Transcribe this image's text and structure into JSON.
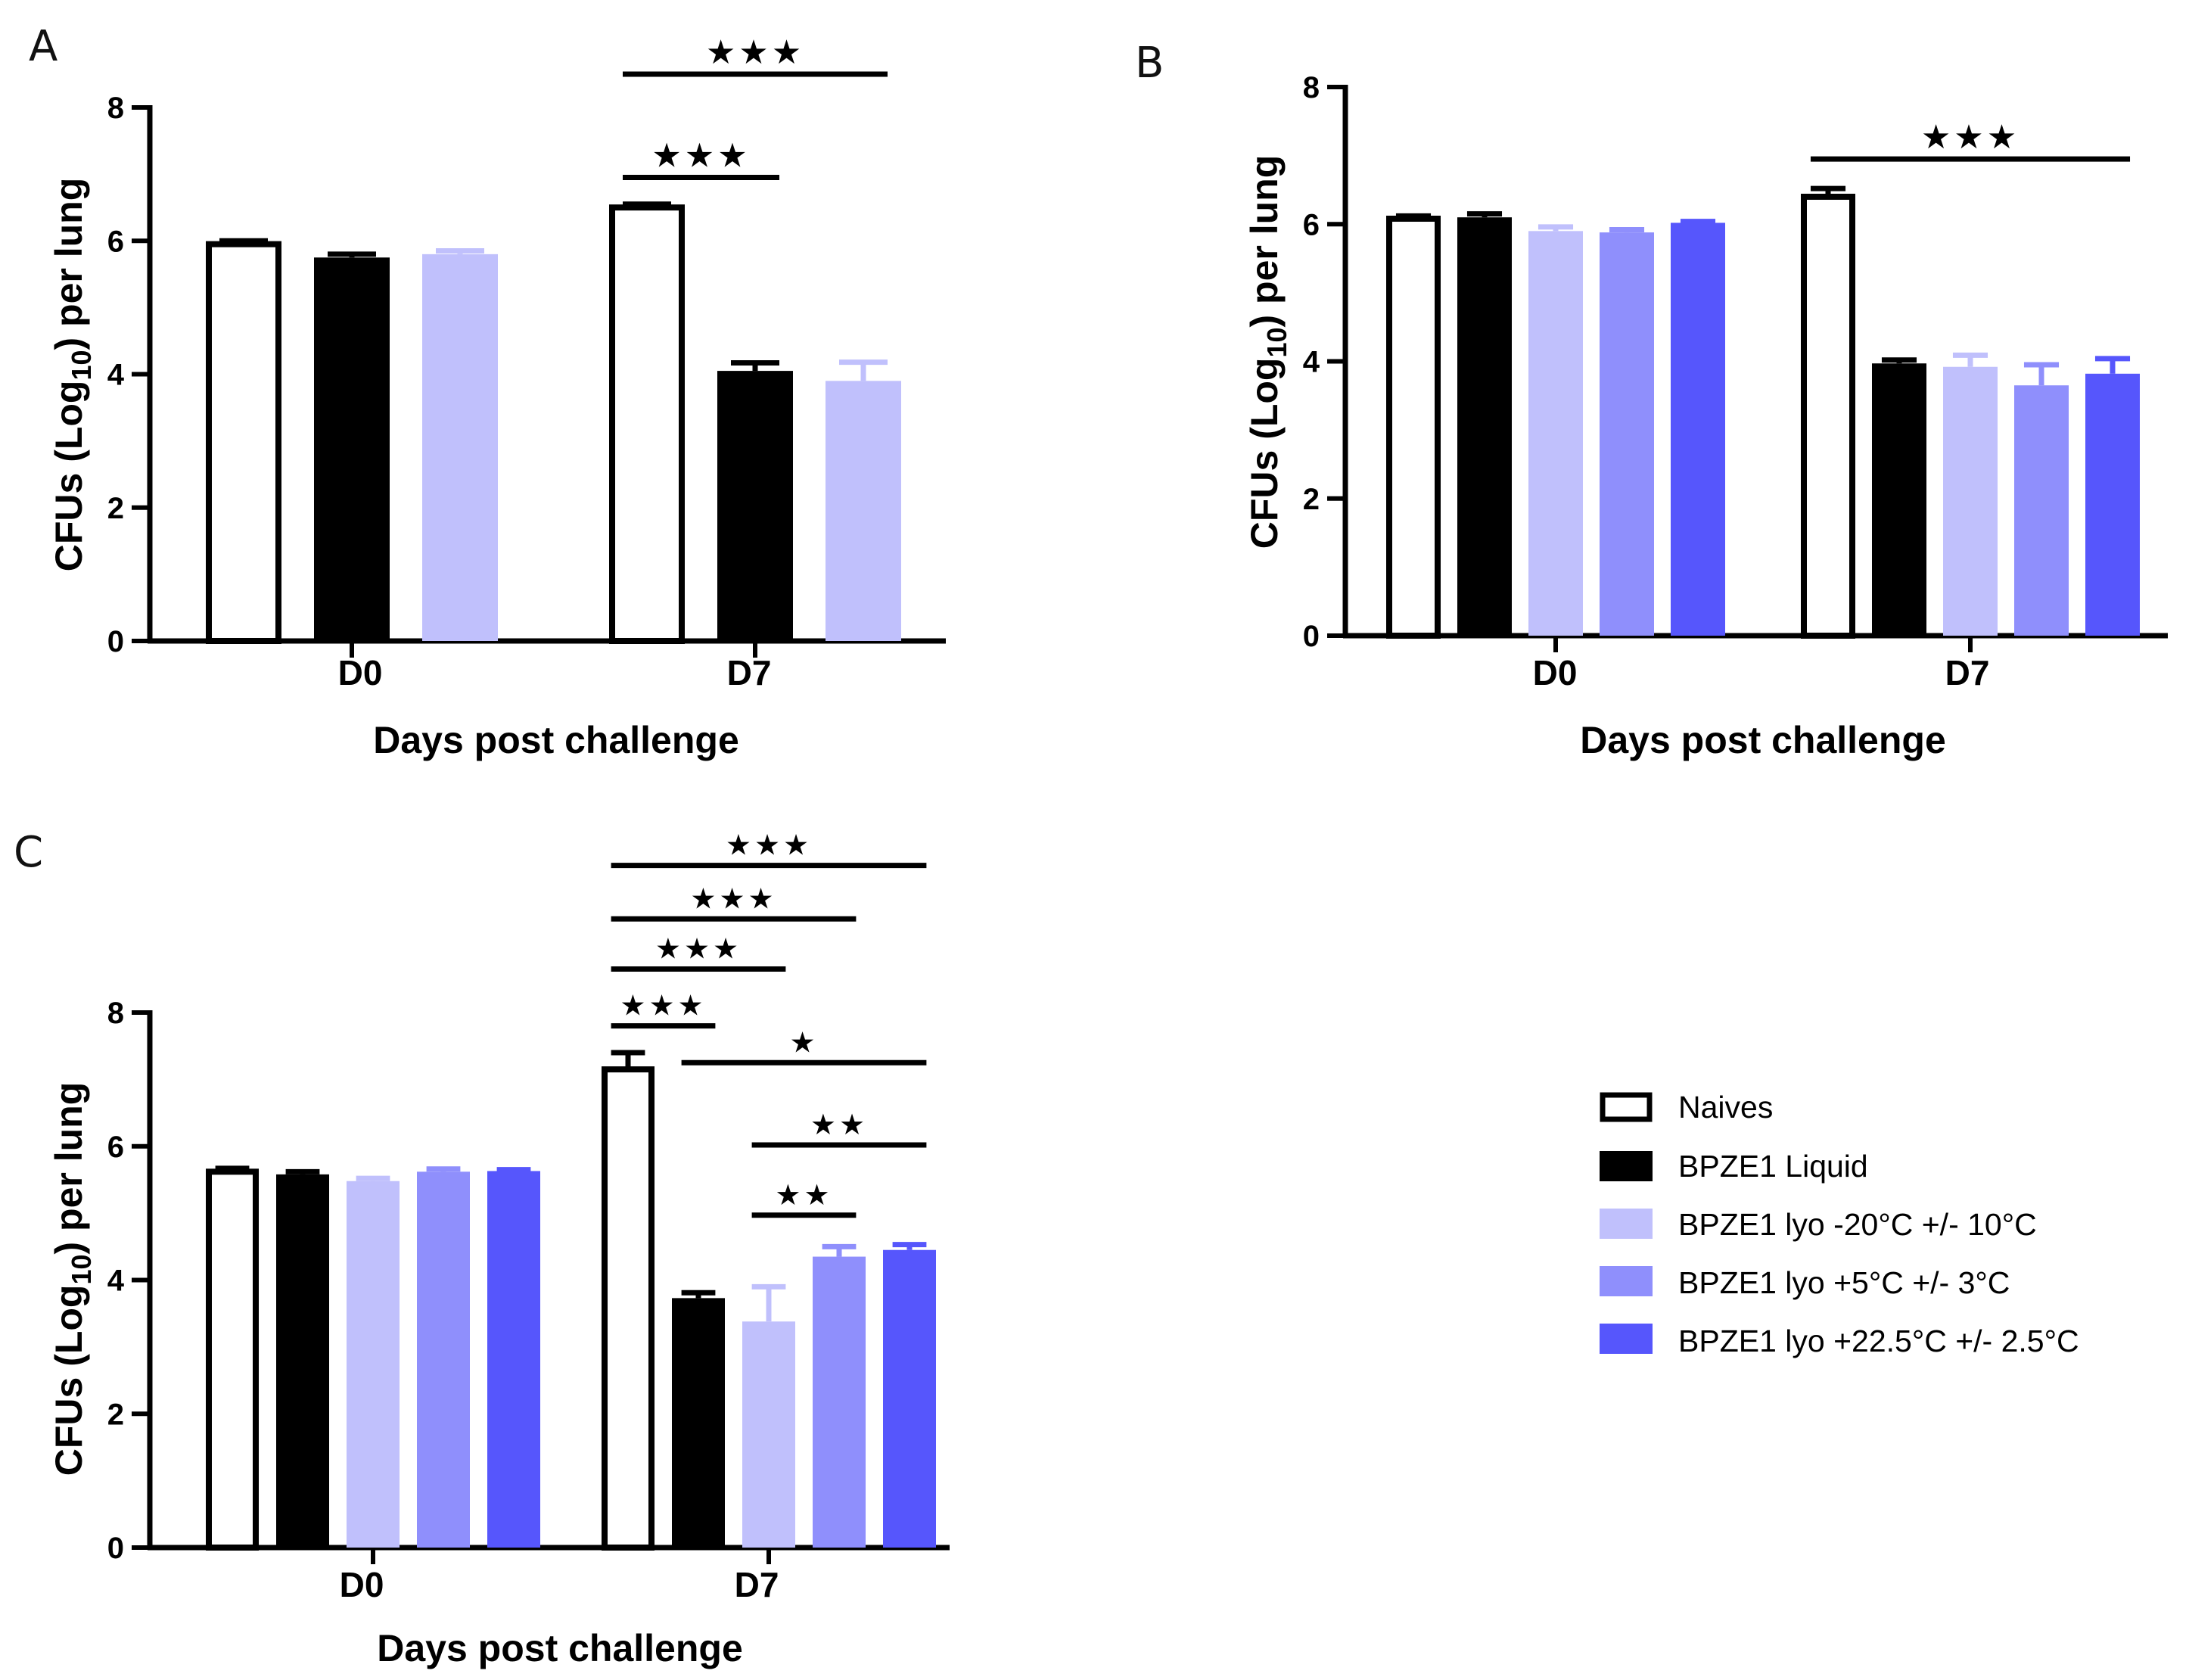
{
  "legend": {
    "items": [
      {
        "label": "Naives",
        "color": "#ffffff"
      },
      {
        "label": "BPZE1 Liquid",
        "color": "#000000"
      },
      {
        "label": "BPZE1 lyo -20°C +/- 10°C",
        "color": "#c0c0fc"
      },
      {
        "label": "BPZE1 lyo +5°C +/- 3°C",
        "color": "#8f8ffc"
      },
      {
        "label": "BPZE1 lyo +22.5°C +/- 2.5°C",
        "color": "#5656fc"
      }
    ]
  },
  "chart_data": [
    {
      "panel": "A",
      "type": "bar",
      "title": "",
      "xlabel": "Days post challenge",
      "ylabel": "CFUs (Log10) per lung",
      "ylabel_parts": {
        "pre": "CFUs (Log",
        "sub": "10",
        "post": ") per lung"
      },
      "ylim": [
        0,
        8
      ],
      "yticks": [
        "0",
        "2",
        "4",
        "6",
        "8"
      ],
      "categories": [
        "D0",
        "D7"
      ],
      "series": [
        {
          "name": "Naives",
          "values": [
            5.95,
            6.5
          ],
          "errors": [
            0.05,
            0.05
          ]
        },
        {
          "name": "BPZE1 Liquid",
          "values": [
            5.75,
            4.05
          ],
          "errors": [
            0.05,
            0.12
          ]
        },
        {
          "name": "BPZE1 lyo -20°C +/- 10°C",
          "values": [
            5.8,
            3.9
          ],
          "errors": [
            0.05,
            0.28
          ]
        }
      ],
      "significance": [
        {
          "label": "★★★",
          "category": "D7",
          "from_series": 0,
          "to_series": 2,
          "y": 8.5
        },
        {
          "label": "★★★",
          "category": "D7",
          "from_series": 0,
          "to_series": 1,
          "y": 6.95
        }
      ]
    },
    {
      "panel": "B",
      "type": "bar",
      "title": "",
      "xlabel": "Days post challenge",
      "ylabel": "CFUs (Log10) per lung",
      "ylabel_parts": {
        "pre": "CFUs (Log",
        "sub": "10",
        "post": ") per lung"
      },
      "ylim": [
        0,
        8
      ],
      "yticks": [
        "0",
        "2",
        "4",
        "6",
        "8"
      ],
      "categories": [
        "D0",
        "D7"
      ],
      "series": [
        {
          "name": "Naives",
          "values": [
            6.08,
            6.4
          ],
          "errors": [
            0.04,
            0.12
          ]
        },
        {
          "name": "BPZE1 Liquid",
          "values": [
            6.1,
            3.97
          ],
          "errors": [
            0.05,
            0.05
          ]
        },
        {
          "name": "BPZE1 lyo -20°C +/- 10°C",
          "values": [
            5.9,
            3.92
          ],
          "errors": [
            0.06,
            0.17
          ]
        },
        {
          "name": "BPZE1 lyo +5°C +/- 3°C",
          "values": [
            5.88,
            3.65
          ],
          "errors": [
            0.04,
            0.3
          ]
        },
        {
          "name": "BPZE1 lyo +22.5°C +/- 2.5°C",
          "values": [
            6.02,
            3.82
          ],
          "errors": [
            0.02,
            0.22
          ]
        }
      ],
      "significance": [
        {
          "label": "★★★",
          "category": "D7",
          "from_series": 0,
          "to_series": 4,
          "y": 6.95
        }
      ]
    },
    {
      "panel": "C",
      "type": "bar",
      "title": "",
      "xlabel": "Days post challenge",
      "ylabel": "CFUs (Log10) per lung",
      "ylabel_parts": {
        "pre": "CFUs (Log",
        "sub": "10",
        "post": ") per lung"
      },
      "ylim": [
        0,
        8
      ],
      "yticks": [
        "0",
        "2",
        "4",
        "6",
        "8"
      ],
      "categories": [
        "D0",
        "D7"
      ],
      "series": [
        {
          "name": "Naives",
          "values": [
            5.62,
            7.15
          ],
          "errors": [
            0.05,
            0.25
          ]
        },
        {
          "name": "BPZE1 Liquid",
          "values": [
            5.58,
            3.73
          ],
          "errors": [
            0.04,
            0.08
          ]
        },
        {
          "name": "BPZE1 lyo -20°C +/- 10°C",
          "values": [
            5.48,
            3.38
          ],
          "errors": [
            0.04,
            0.52
          ]
        },
        {
          "name": "BPZE1 lyo +5°C +/- 3°C",
          "values": [
            5.62,
            4.35
          ],
          "errors": [
            0.04,
            0.15
          ]
        },
        {
          "name": "BPZE1 lyo +22.5°C +/- 2.5°C",
          "values": [
            5.63,
            4.45
          ],
          "errors": [
            0.02,
            0.08
          ]
        }
      ],
      "significance": [
        {
          "label": "★★★",
          "category": "D7",
          "from_series": 0,
          "to_series": 4,
          "y": 10.2
        },
        {
          "label": "★★★",
          "category": "D7",
          "from_series": 0,
          "to_series": 3,
          "y": 9.4
        },
        {
          "label": "★★★",
          "category": "D7",
          "from_series": 0,
          "to_series": 2,
          "y": 8.65
        },
        {
          "label": "★★★",
          "category": "D7",
          "from_series": 0,
          "to_series": 1,
          "y": 7.8
        },
        {
          "label": "★",
          "category": "D7",
          "from_series": 1,
          "to_series": 4,
          "y": 7.25
        },
        {
          "label": "★★",
          "category": "D7",
          "from_series": 2,
          "to_series": 4,
          "y": 6.02
        },
        {
          "label": "★★",
          "category": "D7",
          "from_series": 2,
          "to_series": 3,
          "y": 4.97
        }
      ]
    }
  ]
}
